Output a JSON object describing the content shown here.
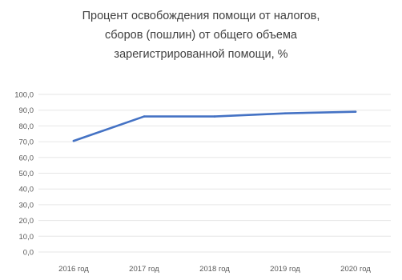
{
  "chart_data": {
    "type": "line",
    "title_lines": [
      "Процент освобождения помощи от налогов,",
      "сборов (пошлин) от общего объема",
      "зарегистрированной помощи, %"
    ],
    "categories": [
      "2016 год",
      "2017 год",
      "2018 год",
      "2019 год",
      "2020 год"
    ],
    "series": [
      {
        "values": [
          70.5,
          86.0,
          86.0,
          88.0,
          89.0
        ]
      }
    ],
    "y_ticks": [
      "0,0",
      "10,0",
      "20,0",
      "30,0",
      "40,0",
      "50,0",
      "60,0",
      "70,0",
      "80,0",
      "90,0",
      "100,0"
    ],
    "ylim": [
      0,
      100
    ],
    "xlabel": "",
    "ylabel": "",
    "grid": true,
    "legend": "none",
    "colors": {
      "line": "#4472c4",
      "grid": "#e6e6e6",
      "text": "#595959"
    }
  }
}
